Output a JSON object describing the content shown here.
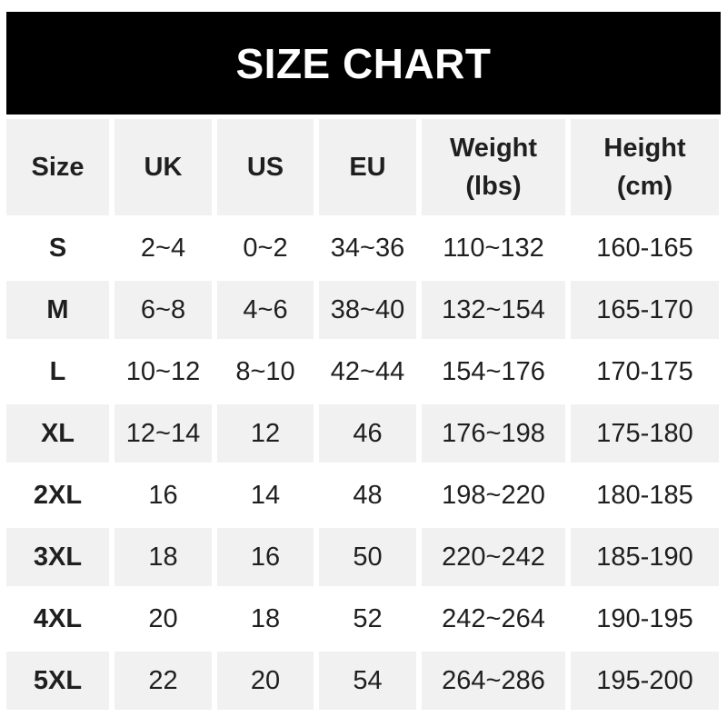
{
  "page": {
    "background": "#ffffff"
  },
  "banner": {
    "title": "SIZE CHART",
    "bg": "#000000",
    "text_color": "#ffffff"
  },
  "table": {
    "alt_row_bg": "#f1f1f1",
    "text_color": "#1f1f1f",
    "columns": [
      {
        "key": "size",
        "label": "Size"
      },
      {
        "key": "uk",
        "label": "UK"
      },
      {
        "key": "us",
        "label": "US"
      },
      {
        "key": "eu",
        "label": "EU"
      },
      {
        "key": "weight",
        "label": "Weight\n(lbs)"
      },
      {
        "key": "height",
        "label": "Height\n(cm)"
      }
    ],
    "rows": [
      {
        "size": "S",
        "uk": "2~4",
        "us": "0~2",
        "eu": "34~36",
        "weight": "110~132",
        "height": "160-165"
      },
      {
        "size": "M",
        "uk": "6~8",
        "us": "4~6",
        "eu": "38~40",
        "weight": "132~154",
        "height": "165-170"
      },
      {
        "size": "L",
        "uk": "10~12",
        "us": "8~10",
        "eu": "42~44",
        "weight": "154~176",
        "height": "170-175"
      },
      {
        "size": "XL",
        "uk": "12~14",
        "us": "12",
        "eu": "46",
        "weight": "176~198",
        "height": "175-180"
      },
      {
        "size": "2XL",
        "uk": "16",
        "us": "14",
        "eu": "48",
        "weight": "198~220",
        "height": "180-185"
      },
      {
        "size": "3XL",
        "uk": "18",
        "us": "16",
        "eu": "50",
        "weight": "220~242",
        "height": "185-190"
      },
      {
        "size": "4XL",
        "uk": "20",
        "us": "18",
        "eu": "52",
        "weight": "242~264",
        "height": "190-195"
      },
      {
        "size": "5XL",
        "uk": "22",
        "us": "20",
        "eu": "54",
        "weight": "264~286",
        "height": "195-200"
      }
    ]
  }
}
